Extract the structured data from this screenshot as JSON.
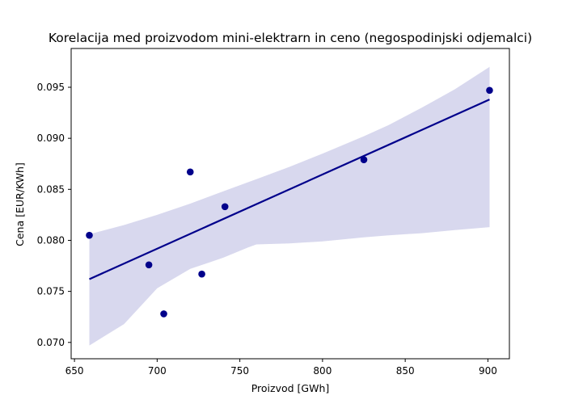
{
  "chart_data": {
    "type": "scatter",
    "title": "Korelacija med proizvodom mini-elektrarn in ceno (negospodinjski odjemalci)",
    "xlabel": "Proizvod [GWh]",
    "ylabel": "Cena [EUR/KWh]",
    "xlim": [
      648,
      913
    ],
    "ylim": [
      0.0684,
      0.0988
    ],
    "xticks": [
      650,
      700,
      750,
      800,
      850,
      900
    ],
    "xtick_labels": [
      "650",
      "700",
      "750",
      "800",
      "850",
      "900"
    ],
    "yticks": [
      0.07,
      0.075,
      0.08,
      0.085,
      0.09,
      0.095
    ],
    "ytick_labels": [
      "0.070",
      "0.075",
      "0.080",
      "0.085",
      "0.090",
      "0.095"
    ],
    "grid": false,
    "points": [
      {
        "x": 659,
        "y": 0.0805
      },
      {
        "x": 695,
        "y": 0.0776
      },
      {
        "x": 704,
        "y": 0.0728
      },
      {
        "x": 720,
        "y": 0.0867
      },
      {
        "x": 727,
        "y": 0.0767
      },
      {
        "x": 741,
        "y": 0.0833
      },
      {
        "x": 825,
        "y": 0.0879
      },
      {
        "x": 901,
        "y": 0.0947
      }
    ],
    "regression_line": {
      "x": [
        659,
        901
      ],
      "y": [
        0.0762,
        0.0938
      ]
    },
    "confidence_band": {
      "x": [
        659,
        680,
        700,
        720,
        740,
        755,
        760,
        780,
        800,
        825,
        840,
        860,
        880,
        901
      ],
      "upper": [
        0.0806,
        0.0815,
        0.0825,
        0.0836,
        0.0848,
        0.0857,
        0.086,
        0.0872,
        0.0885,
        0.0902,
        0.0913,
        0.093,
        0.0948,
        0.097
      ],
      "lower": [
        0.0697,
        0.0718,
        0.0753,
        0.0772,
        0.0783,
        0.0793,
        0.0796,
        0.0797,
        0.0799,
        0.0803,
        0.0805,
        0.0807,
        0.081,
        0.0813
      ]
    },
    "colors": {
      "points": "#00008b",
      "line": "#00008b",
      "band": "#d8d8ee"
    }
  }
}
